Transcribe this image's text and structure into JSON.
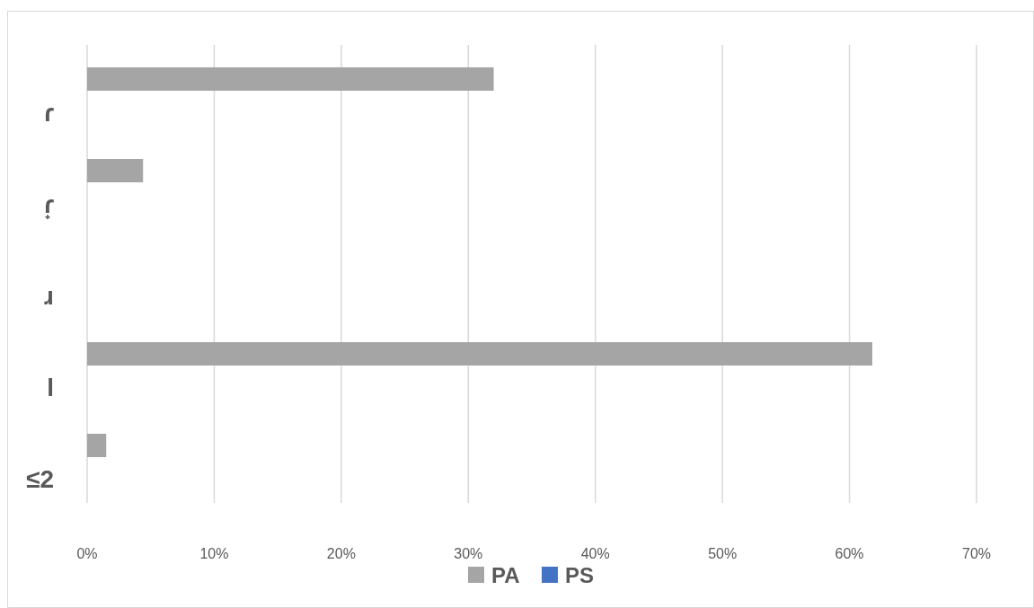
{
  "chart_data": {
    "type": "bar",
    "orientation": "horizontal",
    "categories": [
      "ɾ",
      "ɾ̟",
      "ɹ",
      "l",
      "≤2"
    ],
    "series": [
      {
        "name": "PA",
        "color": "#a5a5a5",
        "values": [
          32.0,
          4.4,
          0,
          61.8,
          1.5
        ]
      },
      {
        "name": "PS",
        "color": "#4472c4",
        "values": [
          0,
          0,
          0,
          0,
          0
        ]
      }
    ],
    "xlim": [
      0,
      70
    ],
    "xticks": [
      {
        "value": 0,
        "label": "0%"
      },
      {
        "value": 10,
        "label": "10%"
      },
      {
        "value": 20,
        "label": "20%"
      },
      {
        "value": 30,
        "label": "30%"
      },
      {
        "value": 40,
        "label": "40%"
      },
      {
        "value": 50,
        "label": "50%"
      },
      {
        "value": 60,
        "label": "60%"
      },
      {
        "value": 70,
        "label": "70%"
      }
    ],
    "grid": "x",
    "legend": "bottom"
  }
}
